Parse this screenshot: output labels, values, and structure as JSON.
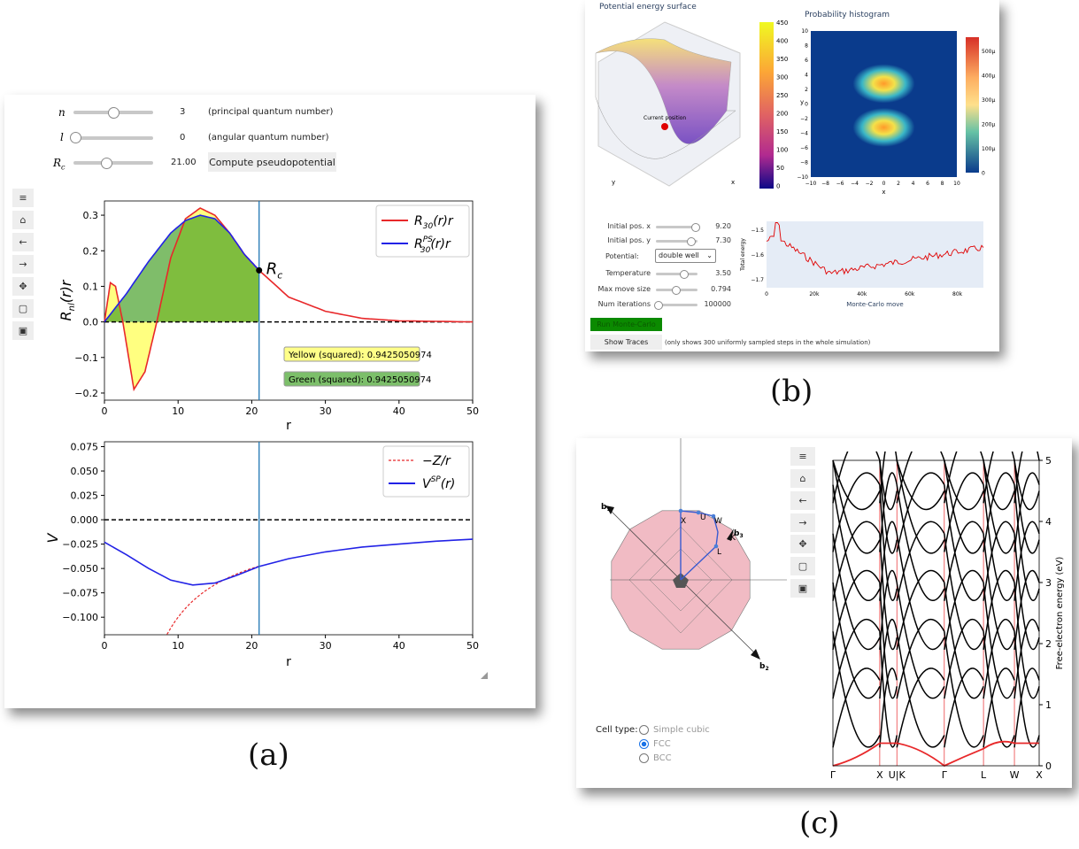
{
  "labels": {
    "a": "(a)",
    "b": "(b)",
    "c": "(c)"
  },
  "panel_a": {
    "sliders": [
      {
        "symbol": "n",
        "value": "3",
        "desc": "(principal quantum number)",
        "fraction": 0.5
      },
      {
        "symbol": "l",
        "value": "0",
        "desc": "(angular quantum number)",
        "fraction": 0.0
      },
      {
        "symbol": "R",
        "sub": "c",
        "value": "21.00",
        "desc": "",
        "fraction": 0.42
      }
    ],
    "compute_button": "Compute pseudopotential",
    "toolbar_icons": [
      "menu-icon",
      "home-icon",
      "back-arrow-icon",
      "forward-arrow-icon",
      "pan-icon",
      "zoom-rect-icon",
      "save-icon"
    ],
    "top_plot": {
      "ylabel": "R",
      "ylabel_sub": "nl",
      "ylabel_tail": "(r)r",
      "xlabel": "r",
      "xticks": [
        "0",
        "10",
        "20",
        "30",
        "40",
        "50"
      ],
      "yticks": [
        "0.3",
        "0.2",
        "0.1",
        "0.0",
        "−0.1",
        "−0.2"
      ],
      "legend": [
        {
          "text": "R",
          "sub": "30",
          "tail": "(r)r",
          "color": "#e8282a"
        },
        {
          "text": "R",
          "sup": "PS",
          "sub": "30",
          "tail": "(r)r",
          "color": "#2222e6"
        }
      ],
      "rc_label": "R",
      "rc_sub": "c",
      "yellow_box": "Yellow (squared): 0.9425050974",
      "green_box": "Green (squared): 0.9425050974"
    },
    "bottom_plot": {
      "ylabel": "V",
      "xlabel": "r",
      "xticks": [
        "0",
        "10",
        "20",
        "30",
        "40",
        "50"
      ],
      "yticks": [
        "0.075",
        "0.050",
        "0.025",
        "0.000",
        "−0.025",
        "−0.050",
        "−0.075",
        "−0.100"
      ],
      "legend": [
        {
          "text": "−Z/r",
          "color": "#e8282a"
        },
        {
          "text": "V",
          "sup": "SP",
          "tail": "(r)",
          "color": "#2222e6"
        }
      ]
    }
  },
  "panel_b": {
    "surface_title": "Potential energy surface",
    "hist_title": "Probability histogram",
    "colorbar1_ticks": [
      "450",
      "400",
      "350",
      "300",
      "250",
      "200",
      "150",
      "100",
      "50",
      "0"
    ],
    "colorbar2_ticks": [
      "500μ",
      "400μ",
      "300μ",
      "200μ",
      "100μ",
      "0"
    ],
    "hist_xticks": [
      "−10",
      "−8",
      "−6",
      "−4",
      "−2",
      "0",
      "2",
      "4",
      "6",
      "8",
      "10"
    ],
    "hist_yticks": [
      "10",
      "8",
      "6",
      "4",
      "2",
      "0",
      "−2",
      "−4",
      "−6",
      "−8",
      "−10"
    ],
    "hist_xlabel": "x",
    "hist_ylabel": "y",
    "current_position": "Current position",
    "axis_x": "x",
    "axis_y": "y",
    "controls": [
      {
        "label": "Initial pos. x",
        "value": "9.20",
        "fraction": 0.95
      },
      {
        "label": "Initial pos. y",
        "value": "7.30",
        "fraction": 0.85
      },
      {
        "label": "Temperature",
        "value": "3.50",
        "fraction": 0.65
      },
      {
        "label": "Max move size",
        "value": "0.794",
        "fraction": 0.45
      },
      {
        "label": "Num iterations",
        "value": "100000",
        "fraction": 0.0
      }
    ],
    "potential_label": "Potential:",
    "potential_value": "double well",
    "run_button": "Run Monte-Carlo",
    "traces_button": "Show Traces",
    "traces_note": "(only shows 300 uniformly sampled steps in the whole simulation)",
    "energy_yticks": [
      "−1.5",
      "−1.6",
      "−1.7"
    ],
    "energy_xticks": [
      "0",
      "20k",
      "40k",
      "60k",
      "80k"
    ],
    "energy_ylabel": "Total energy",
    "energy_xlabel": "Monte-Carlo move"
  },
  "panel_c": {
    "cell_type_label": "Cell type:",
    "options": [
      "Simple cubic",
      "FCC",
      "BCC"
    ],
    "selected": "FCC",
    "bz_labels": {
      "b1": "b",
      "b1_sub": "1",
      "b2": "b",
      "b2_sub": "2",
      "b3": "b",
      "b3_sub": "3",
      "X": "X",
      "U": "U",
      "W": "W",
      "K": "K",
      "L": "L"
    },
    "toolbar_icons": [
      "menu-icon",
      "home-icon",
      "back-arrow-icon",
      "forward-arrow-icon",
      "pan-icon",
      "zoom-rect-icon",
      "save-icon"
    ],
    "band_xticks": [
      "Γ",
      "X",
      "U|K",
      "Γ",
      "L",
      "W",
      "X"
    ],
    "band_yticks": [
      "5",
      "4",
      "3",
      "2",
      "1",
      "0"
    ],
    "band_ylabel": "Free-electron energy (eV)"
  }
}
